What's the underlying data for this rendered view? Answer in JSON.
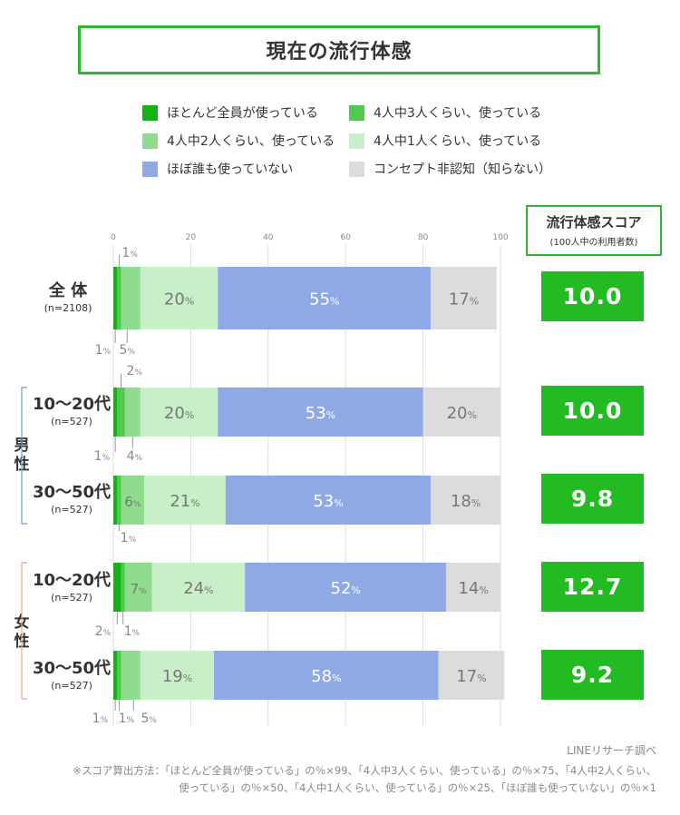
{
  "title": "現在の流行体感",
  "legend": [
    {
      "label": "ほとんど全員が使っている",
      "color": "#12b312"
    },
    {
      "label": "4人中3人くらい、使っている",
      "color": "#4fc94f"
    },
    {
      "label": "4人中2人くらい、使っている",
      "color": "#8fdc8f"
    },
    {
      "label": "4人中1人くらい、使っている",
      "color": "#c9efc9"
    },
    {
      "label": "ほぼ誰も使っていない",
      "color": "#8ea9e6"
    },
    {
      "label": "コンセプト非認知（知らない）",
      "color": "#dcdcdc"
    }
  ],
  "score_header": {
    "title": "流行体感スコア",
    "subtitle": "(100人中の利用者数)"
  },
  "groups": {
    "male": "男性",
    "female": "女性"
  },
  "group_colors": {
    "male": "#7b9bd6",
    "female": "#f0a58a"
  },
  "source": "LINEリサーチ調べ",
  "note": [
    "※スコア算出方法：「ほとんど全員が使っている」の％×99、「4人中3人くらい、使っている」の％×75、「4人中2人くらい、",
    "使っている」の％×50、「4人中1人くらい、使っている」の％×25、「ほぼ誰も使っていない」の％×1"
  ],
  "chart_data": {
    "type": "bar",
    "orientation": "horizontal",
    "stacked": true,
    "title": "現在の流行体感",
    "xlim": [
      0,
      100
    ],
    "xticks": [
      0,
      20,
      40,
      60,
      80,
      100
    ],
    "categories": [
      {
        "label": "全 体",
        "n": "(n=2108)"
      },
      {
        "label": "10〜20代",
        "n": "(n=527)"
      },
      {
        "label": "30〜50代",
        "n": "(n=527)"
      },
      {
        "label": "10〜20代",
        "n": "(n=527)"
      },
      {
        "label": "30〜50代",
        "n": "(n=527)"
      }
    ],
    "series": [
      {
        "name": "ほとんど全員が使っている",
        "values": [
          1,
          1,
          1,
          2,
          1
        ]
      },
      {
        "name": "4人中3人くらい、使っている",
        "values": [
          1,
          2,
          1,
          1,
          1
        ]
      },
      {
        "name": "4人中2人くらい、使っている",
        "values": [
          5,
          4,
          6,
          7,
          5
        ]
      },
      {
        "name": "4人中1人くらい、使っている",
        "values": [
          20,
          20,
          21,
          24,
          19
        ]
      },
      {
        "name": "ほぼ誰も使っていない",
        "values": [
          55,
          53,
          53,
          52,
          58
        ]
      },
      {
        "name": "コンセプト非認知（知らない）",
        "values": [
          17,
          20,
          18,
          14,
          17
        ]
      }
    ],
    "scores": [
      "10.0",
      "10.0",
      "9.8",
      "12.7",
      "9.2"
    ],
    "percent_sign": "%"
  }
}
